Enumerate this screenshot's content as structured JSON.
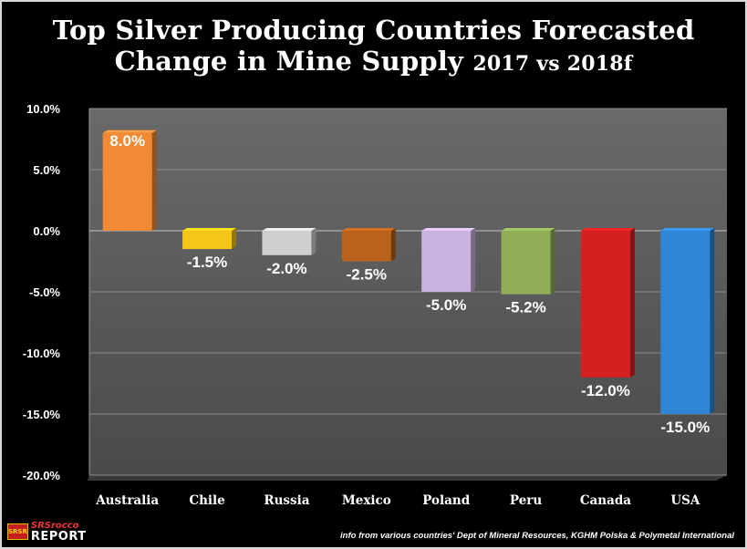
{
  "title": {
    "line1": "Top Silver Producing Countries Forecasted",
    "line2_main": "Change in Mine Supply",
    "line2_sub": "2017 vs 2018f"
  },
  "chart_data": {
    "type": "bar",
    "title": "Top Silver Producing Countries Forecasted Change in Mine Supply 2017 vs 2018f",
    "categories": [
      "Australia",
      "Chile",
      "Russia",
      "Mexico",
      "Poland",
      "Peru",
      "Canada",
      "USA"
    ],
    "values": [
      8.0,
      -1.5,
      -2.0,
      -2.5,
      -5.0,
      -5.2,
      -12.0,
      -15.0
    ],
    "data_labels": [
      "8.0%",
      "-1.5%",
      "-2.0%",
      "-2.5%",
      "-5.0%",
      "-5.2%",
      "-12.0%",
      "-15.0%"
    ],
    "colors": [
      "#f28a35",
      "#f5c518",
      "#cfcfcf",
      "#b8621b",
      "#c9b3de",
      "#8fae57",
      "#d61f1f",
      "#2f86d6"
    ],
    "ylim": [
      -20,
      10
    ],
    "yticks": [
      10,
      5,
      0,
      -5,
      -10,
      -15,
      -20
    ],
    "ytick_labels": [
      "10.0%",
      "5.0%",
      "0.0%",
      "-5.0%",
      "-10.0%",
      "-15.0%",
      "-20.0%"
    ],
    "xlabel": "",
    "ylabel": "",
    "grid": true,
    "legend": false
  },
  "footer": {
    "logo_mark": "SRSR",
    "logo_line1": "SRSrocco",
    "logo_line2": "REPORT",
    "source": "info from various countries' Dept of Mineral Resources, KGHM Polska & Polymetal International"
  },
  "colors": {
    "background": "#000000",
    "plot_wall": "#5c5c5c",
    "gridline": "#8a8a8a"
  }
}
